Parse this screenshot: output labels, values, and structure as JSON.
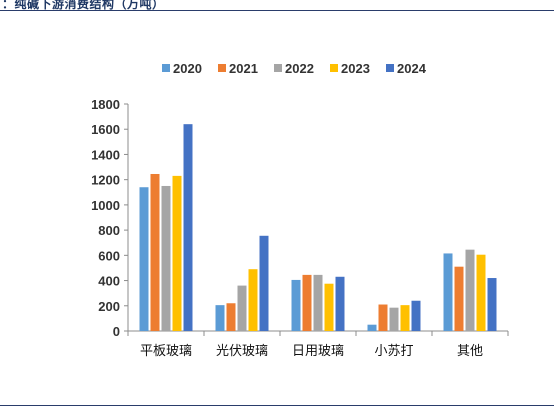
{
  "header": {
    "title": "：纯碱下游消费结构（万吨）"
  },
  "chart_data": {
    "type": "bar",
    "title": "",
    "xlabel": "",
    "ylabel": "",
    "ylim": [
      0,
      1800
    ],
    "yticks": [
      "0",
      "200",
      "400",
      "600",
      "800",
      "1000",
      "1200",
      "1400",
      "1600",
      "1800"
    ],
    "legend_position": "top",
    "grid": false,
    "categories": [
      "平板玻璃",
      "光伏玻璃",
      "日用玻璃",
      "小苏打",
      "其他"
    ],
    "series": [
      {
        "name": "2020",
        "color": "#5b9bd5",
        "values": [
          1140,
          205,
          405,
          50,
          615
        ]
      },
      {
        "name": "2021",
        "color": "#ed7d31",
        "values": [
          1245,
          220,
          445,
          210,
          510
        ]
      },
      {
        "name": "2022",
        "color": "#a5a5a5",
        "values": [
          1150,
          360,
          445,
          185,
          645
        ]
      },
      {
        "name": "2023",
        "color": "#ffc000",
        "values": [
          1230,
          490,
          375,
          205,
          605
        ]
      },
      {
        "name": "2024",
        "color": "#4472c4",
        "values": [
          1640,
          755,
          430,
          240,
          420
        ]
      }
    ]
  }
}
